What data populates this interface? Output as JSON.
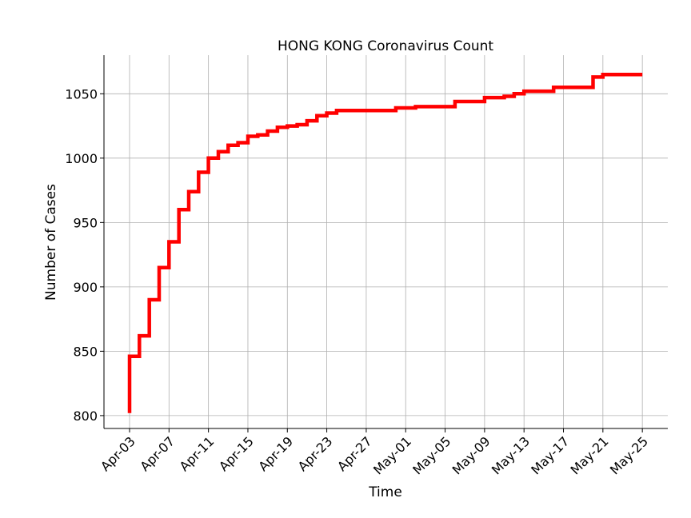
{
  "chart_data": {
    "type": "line",
    "step": true,
    "title": "HONG KONG Coronavirus Count",
    "xlabel": "Time",
    "ylabel": "Number of Cases",
    "x_ticks": [
      "Apr-03",
      "Apr-07",
      "Apr-11",
      "Apr-15",
      "Apr-19",
      "Apr-23",
      "Apr-27",
      "May-01",
      "May-05",
      "May-09",
      "May-13",
      "May-17",
      "May-21",
      "May-25"
    ],
    "y_ticks": [
      800,
      850,
      900,
      950,
      1000,
      1050
    ],
    "xlim": [
      "2020-04-00.4",
      "2020-05-27.6"
    ],
    "ylim": [
      790,
      1080
    ],
    "grid": true,
    "series": [
      {
        "color": "#ff0000",
        "x": [
          "2020-04-03",
          "2020-04-04",
          "2020-04-05",
          "2020-04-06",
          "2020-04-07",
          "2020-04-08",
          "2020-04-09",
          "2020-04-10",
          "2020-04-11",
          "2020-04-12",
          "2020-04-13",
          "2020-04-14",
          "2020-04-15",
          "2020-04-16",
          "2020-04-17",
          "2020-04-18",
          "2020-04-19",
          "2020-04-20",
          "2020-04-21",
          "2020-04-22",
          "2020-04-23",
          "2020-04-24",
          "2020-04-25",
          "2020-04-26",
          "2020-04-27",
          "2020-04-28",
          "2020-04-29",
          "2020-04-30",
          "2020-05-01",
          "2020-05-02",
          "2020-05-03",
          "2020-05-04",
          "2020-05-05",
          "2020-05-06",
          "2020-05-07",
          "2020-05-08",
          "2020-05-09",
          "2020-05-10",
          "2020-05-11",
          "2020-05-12",
          "2020-05-13",
          "2020-05-14",
          "2020-05-15",
          "2020-05-16",
          "2020-05-17",
          "2020-05-18",
          "2020-05-19",
          "2020-05-20",
          "2020-05-21",
          "2020-05-22",
          "2020-05-23",
          "2020-05-24",
          "2020-05-25"
        ],
        "values": [
          802,
          846,
          862,
          890,
          915,
          935,
          960,
          974,
          989,
          1000,
          1005,
          1010,
          1012,
          1017,
          1018,
          1021,
          1024,
          1025,
          1026,
          1029,
          1033,
          1035,
          1037,
          1037,
          1037,
          1037,
          1037,
          1037,
          1039,
          1039,
          1040,
          1040,
          1040,
          1040,
          1044,
          1044,
          1044,
          1047,
          1047,
          1048,
          1050,
          1052,
          1052,
          1052,
          1055,
          1055,
          1055,
          1055,
          1063,
          1065,
          1065,
          1065,
          1065
        ]
      }
    ]
  }
}
